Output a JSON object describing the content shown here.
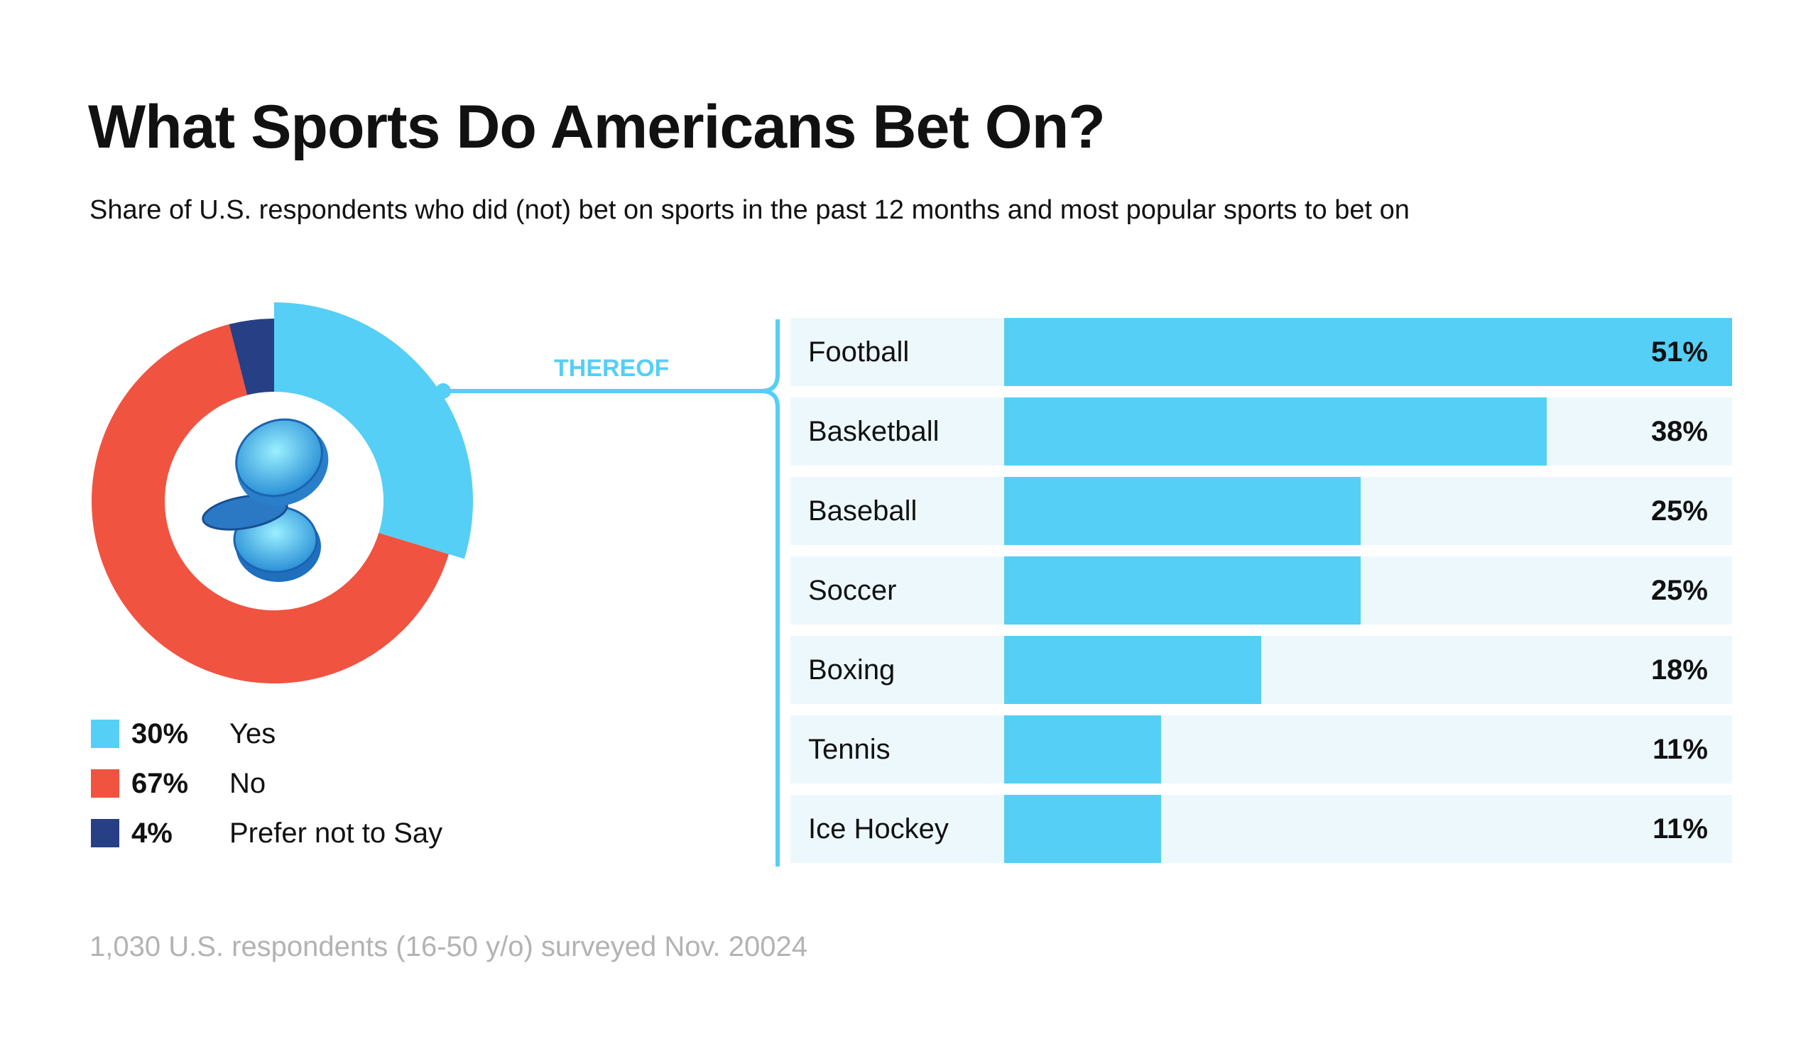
{
  "title": "What Sports Do Americans Bet On?",
  "subtitle": "Share of U.S. respondents who did (not) bet on sports in the past 12 months and most popular sports to bet on",
  "connector_label": "THEREOF",
  "footnote": "1,030 U.S. respondents (16-50 y/o) surveyed Nov. 20024",
  "colors": {
    "yes": "#55cff5",
    "no": "#f05340",
    "prefer_not": "#273f84",
    "bar": "#55cff5",
    "bar_bg": "#edf8fd"
  },
  "center_icon": "coins-icon",
  "chart_data": [
    {
      "type": "pie",
      "variant": "donut",
      "slices": [
        {
          "label": "Yes",
          "value": 30,
          "display": "30%"
        },
        {
          "label": "No",
          "value": 67,
          "display": "67%"
        },
        {
          "label": "Prefer not to Say",
          "value": 4,
          "display": "4%"
        }
      ],
      "legend": "bottom"
    },
    {
      "type": "bar",
      "orientation": "horizontal",
      "categories": [
        "Football",
        "Basketball",
        "Baseball",
        "Soccer",
        "Boxing",
        "Tennis",
        "Ice Hockey"
      ],
      "values": [
        51,
        38,
        25,
        25,
        18,
        11,
        11
      ],
      "labels": [
        "51%",
        "38%",
        "25%",
        "25%",
        "18%",
        "11%",
        "11%"
      ],
      "xlim": [
        0,
        51
      ]
    }
  ]
}
